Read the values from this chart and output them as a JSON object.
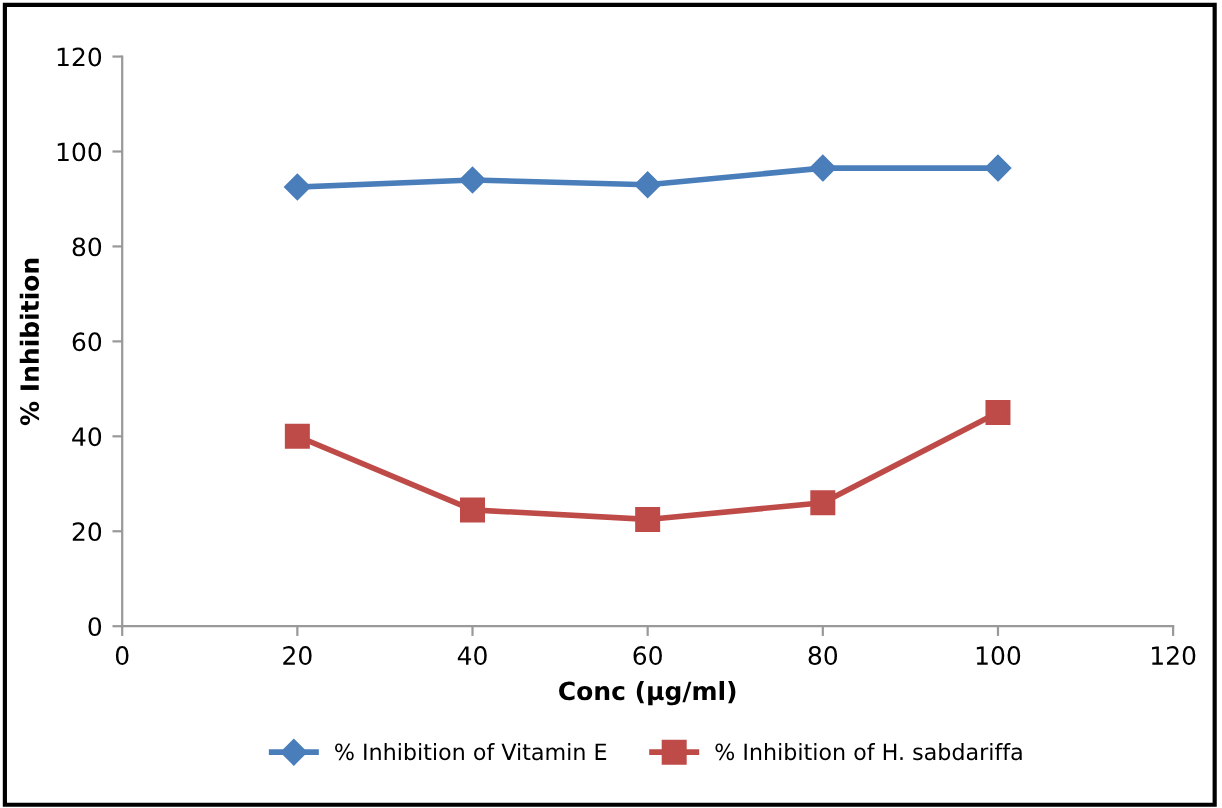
{
  "chart_data": {
    "type": "line",
    "xlabel": "Conc (µg/ml)",
    "ylabel": "% Inhibition",
    "x": [
      20,
      40,
      60,
      80,
      100
    ],
    "series": [
      {
        "name": "% Inhibition of Vitamin E",
        "color": "#4a7ebb",
        "marker": "diamond",
        "values": [
          92.5,
          94,
          93,
          96.5,
          96.5
        ]
      },
      {
        "name": "% Inhibition of H. sabdariffa",
        "color": "#be4b48",
        "marker": "square",
        "values": [
          40,
          24.5,
          22.5,
          26,
          45
        ]
      }
    ],
    "xlim": [
      0,
      120
    ],
    "xticks": [
      0,
      20,
      40,
      60,
      80,
      100,
      120
    ],
    "ylim": [
      0,
      120
    ],
    "yticks": [
      0,
      20,
      40,
      60,
      80,
      100,
      120
    ],
    "grid": false,
    "legend": "bottom",
    "line_style": "solid"
  }
}
